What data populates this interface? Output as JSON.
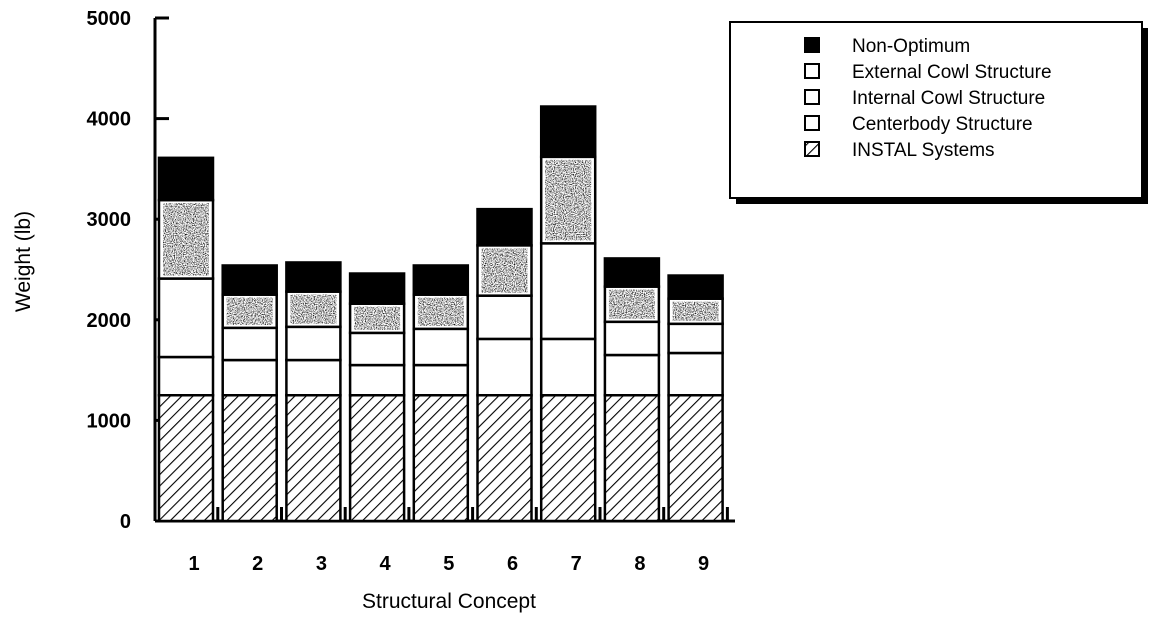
{
  "chart_data": {
    "type": "bar",
    "stacked": true,
    "xlabel": "Structural Concept",
    "ylabel": "Weight  (lb)",
    "ylim": [
      0,
      5000
    ],
    "yticks": [
      "0",
      "1000",
      "2000",
      "3000",
      "4000",
      "5000"
    ],
    "categories": [
      "1",
      "2",
      "3",
      "4",
      "5",
      "6",
      "7",
      "8",
      "9"
    ],
    "grid": false,
    "legend_position": "top-right",
    "series": [
      {
        "name": "INSTAL Systems",
        "fill": "hatch",
        "values": [
          1250,
          1250,
          1250,
          1250,
          1250,
          1250,
          1250,
          1250,
          1250
        ]
      },
      {
        "name": "Centerbody Structure",
        "fill": "white",
        "values": [
          380,
          350,
          350,
          300,
          300,
          560,
          560,
          400,
          420
        ]
      },
      {
        "name": "Internal Cowl Structure",
        "fill": "white",
        "values": [
          780,
          320,
          330,
          320,
          360,
          430,
          950,
          330,
          290
        ]
      },
      {
        "name": "External Cowl Structure",
        "fill": "stipple",
        "values": [
          780,
          330,
          350,
          290,
          340,
          500,
          860,
          350,
          250
        ]
      },
      {
        "name": "Non-Optimum",
        "fill": "solid",
        "values": [
          420,
          290,
          290,
          300,
          290,
          360,
          500,
          280,
          230
        ]
      }
    ],
    "legend_order": [
      "Non-Optimum",
      "External Cowl Structure",
      "Internal Cowl Structure",
      "Centerbody Structure",
      "INSTAL Systems"
    ]
  }
}
